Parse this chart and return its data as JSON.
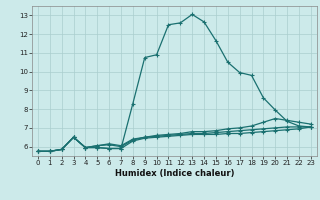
{
  "xlabel": "Humidex (Indice chaleur)",
  "xlim": [
    -0.5,
    23.5
  ],
  "ylim": [
    5.5,
    13.5
  ],
  "yticks": [
    6,
    7,
    8,
    9,
    10,
    11,
    12,
    13
  ],
  "xticks": [
    0,
    1,
    2,
    3,
    4,
    5,
    6,
    7,
    8,
    9,
    10,
    11,
    12,
    13,
    14,
    15,
    16,
    17,
    18,
    19,
    20,
    21,
    22,
    23
  ],
  "bg_color": "#cceaea",
  "line_color": "#1a7070",
  "grid_color": "#aacece",
  "curves": [
    {
      "x": [
        0,
        1,
        2,
        3,
        4,
        5,
        6,
        7,
        8,
        9,
        10,
        11,
        12,
        13,
        14,
        15,
        16,
        17,
        18,
        19,
        20,
        21,
        22,
        23
      ],
      "y": [
        5.75,
        5.75,
        5.85,
        6.5,
        5.95,
        5.95,
        5.9,
        5.9,
        8.3,
        10.75,
        10.9,
        12.5,
        12.6,
        13.05,
        12.65,
        11.65,
        10.5,
        9.95,
        9.8,
        8.6,
        7.95,
        7.35,
        7.1,
        7.05
      ]
    },
    {
      "x": [
        0,
        1,
        2,
        3,
        4,
        5,
        6,
        7,
        8,
        9,
        10,
        11,
        12,
        13,
        14,
        15,
        16,
        17,
        18,
        19,
        20,
        21,
        22,
        23
      ],
      "y": [
        5.75,
        5.75,
        5.85,
        6.5,
        5.95,
        5.95,
        5.9,
        5.9,
        6.3,
        6.45,
        6.5,
        6.55,
        6.6,
        6.65,
        6.65,
        6.65,
        6.7,
        6.7,
        6.75,
        6.8,
        6.85,
        6.9,
        6.95,
        7.05
      ]
    },
    {
      "x": [
        0,
        1,
        2,
        3,
        4,
        5,
        6,
        7,
        8,
        9,
        10,
        11,
        12,
        13,
        14,
        15,
        16,
        17,
        18,
        19,
        20,
        21,
        22,
        23
      ],
      "y": [
        5.75,
        5.75,
        5.85,
        6.5,
        5.95,
        6.05,
        6.1,
        6.0,
        6.35,
        6.5,
        6.55,
        6.6,
        6.65,
        6.7,
        6.7,
        6.75,
        6.8,
        6.85,
        6.9,
        6.95,
        7.0,
        7.05,
        7.05,
        7.05
      ]
    },
    {
      "x": [
        0,
        1,
        2,
        3,
        4,
        5,
        6,
        7,
        8,
        9,
        10,
        11,
        12,
        13,
        14,
        15,
        16,
        17,
        18,
        19,
        20,
        21,
        22,
        23
      ],
      "y": [
        5.75,
        5.75,
        5.85,
        6.5,
        5.95,
        6.05,
        6.15,
        6.05,
        6.4,
        6.5,
        6.6,
        6.65,
        6.7,
        6.8,
        6.8,
        6.85,
        6.95,
        7.0,
        7.1,
        7.3,
        7.5,
        7.4,
        7.3,
        7.2
      ]
    }
  ]
}
